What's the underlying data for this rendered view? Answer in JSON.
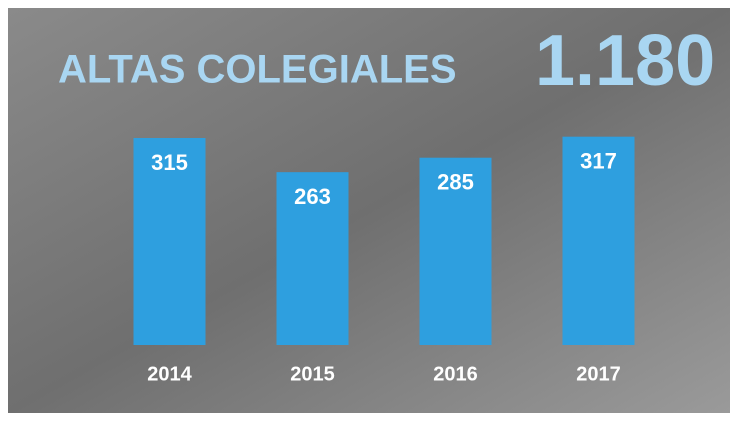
{
  "chart_data": {
    "type": "bar",
    "title": "ALTAS COLEGIALES",
    "headline": "1.180",
    "categories": [
      "2014",
      "2015",
      "2016",
      "2017"
    ],
    "values": [
      315,
      263,
      285,
      317
    ],
    "color": "#2e9fdf",
    "ylim": [
      0,
      350
    ]
  }
}
